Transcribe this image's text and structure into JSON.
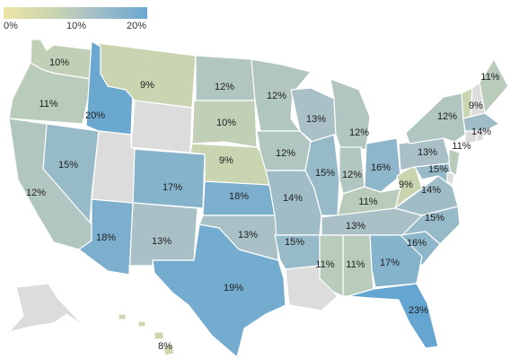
{
  "legend": {
    "ticks": [
      "0%",
      "10%",
      "20%"
    ],
    "colors": {
      "low": "#ece4a5",
      "mid": "#a9c1c6",
      "high": "#6aa8d0",
      "no_data": "#dcdcdc"
    }
  },
  "states": [
    {
      "id": "WA",
      "label": "10%",
      "value": 10
    },
    {
      "id": "OR",
      "label": "11%",
      "value": 11
    },
    {
      "id": "ID",
      "label": "20%",
      "value": 20
    },
    {
      "id": "MT",
      "label": "9%",
      "value": 9
    },
    {
      "id": "ND",
      "label": "12%",
      "value": 12
    },
    {
      "id": "MN",
      "label": "12%",
      "value": 12
    },
    {
      "id": "SD",
      "label": "10%",
      "value": 10
    },
    {
      "id": "NE",
      "label": "9%",
      "value": 9
    },
    {
      "id": "IA",
      "label": "12%",
      "value": 12
    },
    {
      "id": "WI",
      "label": "13%",
      "value": 13
    },
    {
      "id": "MI",
      "label": "12%",
      "value": 12
    },
    {
      "id": "NV",
      "label": "15%",
      "value": 15
    },
    {
      "id": "CA",
      "label": "12%",
      "value": 12
    },
    {
      "id": "CO",
      "label": "17%",
      "value": 17
    },
    {
      "id": "KS",
      "label": "18%",
      "value": 18
    },
    {
      "id": "MO",
      "label": "14%",
      "value": 14
    },
    {
      "id": "IL",
      "label": "15%",
      "value": 15
    },
    {
      "id": "IN",
      "label": "12%",
      "value": 12
    },
    {
      "id": "OH",
      "label": "16%",
      "value": 16
    },
    {
      "id": "WV",
      "label": "9%",
      "value": 9
    },
    {
      "id": "KY",
      "label": "11%",
      "value": 11
    },
    {
      "id": "VA",
      "label": "14%",
      "value": 14
    },
    {
      "id": "PA",
      "label": "13%",
      "value": 13
    },
    {
      "id": "NY",
      "label": "12%",
      "value": 12
    },
    {
      "id": "NJ",
      "label": "11%",
      "value": 11
    },
    {
      "id": "MD",
      "label": "15%",
      "value": 15
    },
    {
      "id": "VT",
      "label": "9%",
      "value": 9
    },
    {
      "id": "ME",
      "label": "11%",
      "value": 11
    },
    {
      "id": "MA",
      "label": "14%",
      "value": 14
    },
    {
      "id": "AZ",
      "label": "18%",
      "value": 18
    },
    {
      "id": "NM",
      "label": "13%",
      "value": 13
    },
    {
      "id": "OK",
      "label": "13%",
      "value": 13
    },
    {
      "id": "TX",
      "label": "19%",
      "value": 19
    },
    {
      "id": "AR",
      "label": "15%",
      "value": 15
    },
    {
      "id": "TN",
      "label": "13%",
      "value": 13
    },
    {
      "id": "NC",
      "label": "15%",
      "value": 15
    },
    {
      "id": "SC",
      "label": "16%",
      "value": 16
    },
    {
      "id": "GA",
      "label": "17%",
      "value": 17
    },
    {
      "id": "AL",
      "label": "11%",
      "value": 11
    },
    {
      "id": "MS",
      "label": "11%",
      "value": 11
    },
    {
      "id": "FL",
      "label": "23%",
      "value": 23
    },
    {
      "id": "HI",
      "label": "8%",
      "value": 8
    },
    {
      "id": "WY",
      "label": "",
      "value": null
    },
    {
      "id": "UT",
      "label": "",
      "value": null
    },
    {
      "id": "LA",
      "label": "",
      "value": null
    },
    {
      "id": "AK",
      "label": "",
      "value": null
    },
    {
      "id": "NH",
      "label": "",
      "value": null
    },
    {
      "id": "CT",
      "label": "",
      "value": null
    },
    {
      "id": "RI",
      "label": "",
      "value": null
    },
    {
      "id": "DE",
      "label": "",
      "value": null
    }
  ]
}
